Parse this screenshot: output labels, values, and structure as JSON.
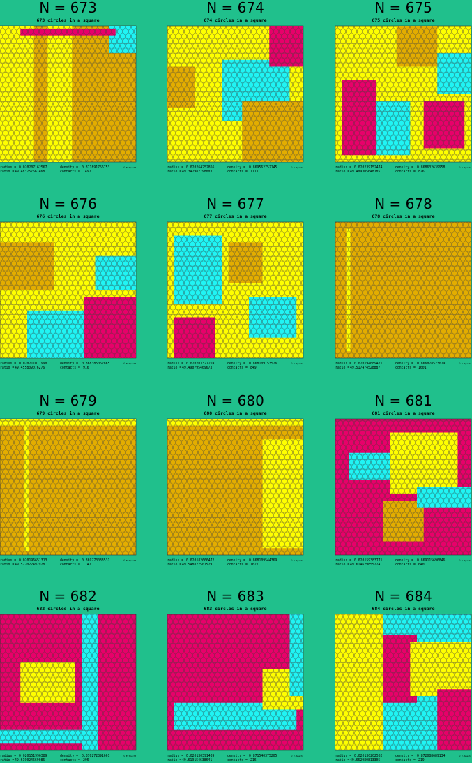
{
  "labels": {
    "radius": "radius =",
    "density": "density =",
    "ratio": "ratio =",
    "contacts": "contacts ="
  },
  "credit": "© E. Specht",
  "panels": [
    {
      "title": "N = 673",
      "subtitle": "673 circles in a square",
      "radius": "0.020207162567",
      "density": "0.871891756753",
      "ratio": "49.483757567468",
      "contacts": "1497"
    },
    {
      "title": "N = 674",
      "subtitle": "674 circles in a square",
      "radius": "0.020264252866",
      "density": "0.869562752145",
      "ratio": "49.347982798003",
      "contacts": "1111"
    },
    {
      "title": "N = 675",
      "subtitle": "675 circles in a square",
      "radius": "0.020239152474",
      "density": "0.868632639958",
      "ratio": "49.409305648185",
      "contacts": "826"
    },
    {
      "title": "N = 676",
      "subtitle": "676 circles in a square",
      "radius": "0.020211011990",
      "density": "0.868385062865",
      "ratio": "49.455809076276",
      "contacts": "916"
    },
    {
      "title": "N = 677",
      "subtitle": "677 circles in a square",
      "radius": "0.020203327269",
      "density": "0.868109153526",
      "ratio": "49.490795469673",
      "contacts": "849"
    },
    {
      "title": "N = 678",
      "subtitle": "678 circles in a square",
      "radius": "0.020194689421",
      "density": "0.866078523079",
      "ratio": "49.517474528887",
      "contacts": "1601"
    },
    {
      "title": "N = 679",
      "subtitle": "679 circles in a square",
      "radius": "0.020196651313",
      "density": "0.869273033531",
      "ratio": "49.527022492928",
      "contacts": "1747"
    },
    {
      "title": "N = 680",
      "subtitle": "680 circles in a square",
      "radius": "0.020182666472",
      "density": "0.868109544369",
      "ratio": "49.548822507579",
      "contacts": "1627"
    },
    {
      "title": "N = 681",
      "subtitle": "681 circles in a square",
      "radius": "0.020159383771",
      "density": "0.869115696846",
      "ratio": "49.614629855274",
      "contacts": "640"
    },
    {
      "title": "N = 682",
      "subtitle": "682 circles in a square",
      "radius": "0.020151996389",
      "density": "0.870272891661",
      "ratio": "49.619024669086",
      "contacts": "295"
    },
    {
      "title": "N = 683",
      "subtitle": "683 circles in a square",
      "radius": "0.020130391489",
      "density": "0.871540375205",
      "ratio": "49.619154638641",
      "contacts": "216"
    },
    {
      "title": "N = 684",
      "subtitle": "684 circles in a square",
      "radius": "0.020130202562",
      "density": "0.872088689134",
      "ratio": "49.662980813305",
      "contacts": "219"
    }
  ]
}
